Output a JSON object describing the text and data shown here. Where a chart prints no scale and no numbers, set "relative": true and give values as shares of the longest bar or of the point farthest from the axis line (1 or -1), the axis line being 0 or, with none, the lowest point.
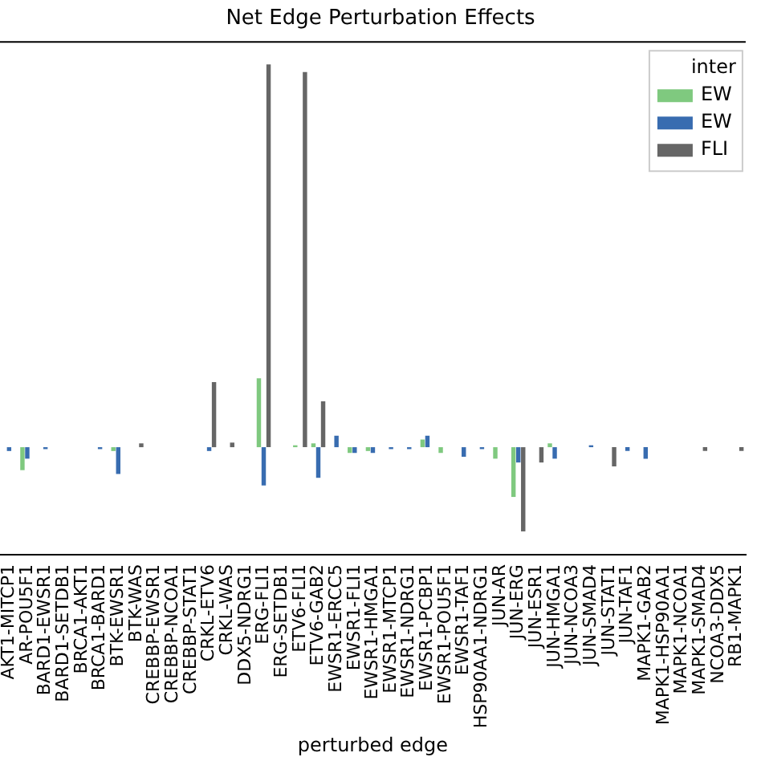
{
  "chart_data": {
    "type": "bar",
    "title": "Net Edge Perturbation Effects",
    "xlabel": "perturbed edge",
    "legend_title": "inter",
    "legend": "top right",
    "relative": true,
    "categories": [
      "AKT1-MITCP1",
      "AR-POU5F1",
      "BARD1-EWSR1",
      "BARD1-SETDB1",
      "BRCA1-AKT1",
      "BRCA1-BARD1",
      "BTK-EWSR1",
      "BTK-WAS",
      "CREBBP-EWSR1",
      "CREBBP-NCOA1",
      "CREBBP-STAT1",
      "CRKL-ETV6",
      "CRKL-WAS",
      "DDX5-NDRG1",
      "ERG-FLI1",
      "ERG-SETDB1",
      "ETV6-FLI1",
      "ETV6-GAB2",
      "EWSR1-ERCC5",
      "EWSR1-FLI1",
      "EWSR1-HMGA1",
      "EWSR1-MTCP1",
      "EWSR1-NDRG1",
      "EWSR1-PCBP1",
      "EWSR1-POU5F1",
      "EWSR1-TAF1",
      "HSP90AA1-NDRG1",
      "JUN-AR",
      "JUN-ERG",
      "JUN-ESR1",
      "JUN-HMGA1",
      "JUN-NCOA3",
      "JUN-SMAD4",
      "JUN-STAT1",
      "JUN-TAF1",
      "MAPK1-GAB2",
      "MAPK1-HSP90AA1",
      "MAPK1-NCOA1",
      "MAPK1-SMAD4",
      "NCOA3-DDX5",
      "RB1-MAPK1"
    ],
    "series": [
      {
        "name": "EW",
        "color": "#7fc97f",
        "values": [
          0,
          -0.06,
          0,
          0,
          0,
          0,
          -0.01,
          0,
          0,
          0,
          0,
          0,
          0,
          0,
          0.18,
          0,
          0.005,
          0.01,
          0,
          -0.015,
          -0.01,
          0,
          0,
          0.02,
          -0.015,
          0,
          0,
          -0.03,
          -0.13,
          0,
          0.01,
          0,
          0,
          0,
          0,
          0,
          0,
          0,
          0,
          0,
          0
        ]
      },
      {
        "name": "EW",
        "color": "#386cb0",
        "values": [
          -0.01,
          -0.03,
          -0.005,
          0,
          0,
          -0.005,
          -0.07,
          0,
          0,
          0,
          0,
          -0.01,
          0,
          0,
          -0.1,
          0,
          0,
          -0.08,
          0.03,
          -0.015,
          -0.015,
          -0.005,
          -0.005,
          0.03,
          0,
          -0.025,
          -0.005,
          0,
          -0.04,
          0,
          -0.03,
          0,
          0.005,
          0,
          -0.01,
          -0.03,
          0,
          0,
          0,
          0,
          0
        ]
      },
      {
        "name": "FLI",
        "color": "#666666",
        "values": [
          0,
          0,
          0,
          0,
          0,
          0,
          0,
          0.01,
          0,
          0,
          0,
          0.17,
          0.012,
          0,
          1,
          0,
          0.98,
          0.12,
          0,
          0,
          0,
          0,
          0,
          0,
          0,
          0,
          0,
          0,
          -0.22,
          -0.04,
          0,
          0,
          0,
          -0.05,
          0,
          0,
          0,
          0,
          -0.01,
          0,
          -0.01
        ]
      }
    ]
  }
}
